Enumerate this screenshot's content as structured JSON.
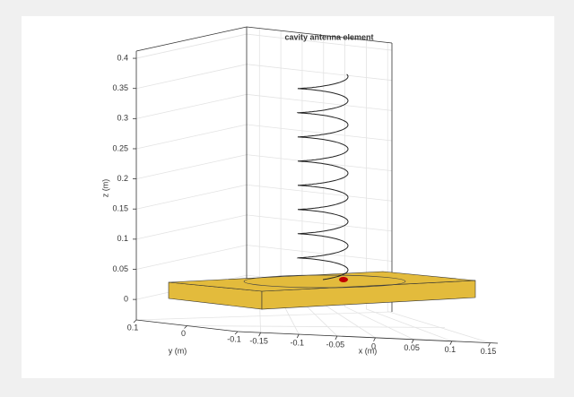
{
  "chart_data": {
    "type": "antenna3d",
    "title": "cavity antenna element",
    "xlabel": "x (m)",
    "ylabel": "y (m)",
    "zlabel": "z (m)",
    "xlim": [
      -0.18,
      0.16
    ],
    "xticks": [
      -0.15,
      -0.1,
      -0.05,
      0,
      0.05,
      0.1,
      0.15
    ],
    "ylim": [
      -0.1,
      0.1
    ],
    "yticks": [
      -0.1,
      0,
      0.1
    ],
    "zlim": [
      -0.034,
      0.412
    ],
    "zticks": [
      0,
      0.05,
      0.1,
      0.15,
      0.2,
      0.25,
      0.3,
      0.35,
      0.4
    ],
    "grid": true,
    "color": "#e3bb3c"
  }
}
